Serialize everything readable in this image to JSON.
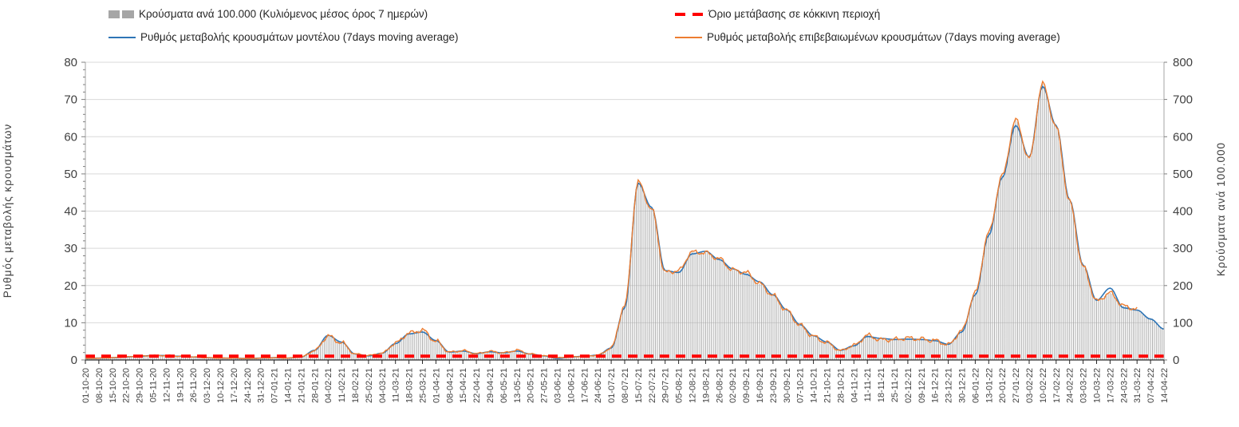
{
  "legend": {
    "items": [
      {
        "name": "cases-per-100k",
        "label": "Κρούσματα ανά 100.000 (Κυλιόμενος μέσος όρος 7 ημερών)",
        "marker": "gray-bar",
        "color": "#a6a6a6"
      },
      {
        "name": "red-threshold",
        "label": "Όριο μετάβασης σε κόκκινη περιοχή",
        "marker": "red-dashes",
        "color": "#ff0000"
      },
      {
        "name": "model-rate",
        "label": "Ρυθμός μεταβολής κρουσμάτων μοντέλου (7days moving average)",
        "marker": "blue-line",
        "color": "#2e75b6"
      },
      {
        "name": "confirmed-rate",
        "label": "Ρυθμός μεταβολής επιβεβαιωμένων κρουσμάτων (7days moving average)",
        "marker": "orange-line",
        "color": "#ed7d31"
      }
    ]
  },
  "chart_data": {
    "type": "composite",
    "grid": "horizontal",
    "legend_position": "top",
    "left_axis": {
      "label": "Ρυθμός μεταβολής κρουσμάτων",
      "min": 0,
      "max": 80,
      "step": 10,
      "ticks": [
        0,
        10,
        20,
        30,
        40,
        50,
        60,
        70,
        80
      ]
    },
    "right_axis": {
      "label": "Κρούσματα ανά 100.000",
      "min": 0,
      "max": 800,
      "step": 100,
      "ticks": [
        0,
        100,
        200,
        300,
        400,
        500,
        600,
        700,
        800
      ]
    },
    "x_weekly_labels": [
      "01-10-20",
      "08-10-20",
      "15-10-20",
      "22-10-20",
      "29-10-20",
      "05-11-20",
      "12-11-20",
      "19-11-20",
      "26-11-20",
      "03-12-20",
      "10-12-20",
      "17-12-20",
      "24-12-20",
      "31-12-20",
      "07-01-21",
      "14-01-21",
      "21-01-21",
      "28-01-21",
      "04-02-21",
      "11-02-21",
      "18-02-21",
      "25-02-21",
      "04-03-21",
      "11-03-21",
      "18-03-21",
      "25-03-21",
      "01-04-21",
      "08-04-21",
      "15-04-21",
      "22-04-21",
      "29-04-21",
      "06-05-21",
      "13-05-21",
      "20-05-21",
      "27-05-21",
      "03-06-21",
      "10-06-21",
      "17-06-21",
      "24-06-21",
      "01-07-21",
      "08-07-21",
      "15-07-21",
      "22-07-21",
      "29-07-21",
      "05-08-21",
      "12-08-21",
      "19-08-21",
      "26-08-21",
      "02-09-21",
      "09-09-21",
      "16-09-21",
      "23-09-21",
      "30-09-21",
      "07-10-21",
      "14-10-21",
      "21-10-21",
      "28-10-21",
      "04-11-21",
      "11-11-21",
      "18-11-21",
      "25-11-21",
      "02-12-21",
      "09-12-21",
      "16-12-21",
      "23-12-21",
      "30-12-21",
      "06-01-22",
      "13-01-22",
      "20-01-22",
      "27-01-22",
      "03-02-22",
      "10-02-22",
      "17-02-22",
      "24-02-22",
      "03-03-22",
      "10-03-22",
      "17-03-22",
      "24-03-22",
      "31-03-22",
      "07-04-22",
      "14-04-22"
    ],
    "series": [
      {
        "name": "Κρούσματα ανά 100.000 (Κυλιόμενος μέσος όρος 7 ημερών)",
        "type": "bar",
        "axis": "right",
        "color": "#a6a6a6",
        "values": [
          4,
          5,
          6,
          8,
          10,
          12,
          12,
          10,
          8,
          6,
          5,
          5,
          4,
          5,
          6,
          5,
          8,
          25,
          64,
          46,
          16,
          12,
          18,
          45,
          72,
          80,
          50,
          21,
          25,
          17,
          23,
          19,
          26,
          16,
          11,
          6,
          8,
          10,
          13,
          32,
          145,
          478,
          405,
          235,
          240,
          290,
          288,
          272,
          242,
          235,
          205,
          173,
          133,
          93,
          63,
          46,
          25,
          39,
          66,
          54,
          55,
          59,
          56,
          52,
          41,
          78,
          180,
          342,
          495,
          645,
          540,
          742,
          625,
          425,
          250,
          158,
          180,
          145,
          136,
          112,
          85
        ]
      },
      {
        "name": "Ρυθμός μεταβολής κρουσμάτων μοντέλου (7days moving average)",
        "type": "line",
        "axis": "left",
        "color": "#2e75b6",
        "values": [
          0.4,
          0.5,
          0.6,
          0.8,
          1.0,
          1.2,
          1.2,
          1.0,
          0.8,
          0.6,
          0.5,
          0.5,
          0.4,
          0.5,
          0.6,
          0.5,
          0.8,
          2.6,
          6.6,
          4.8,
          1.6,
          1.1,
          1.8,
          4.4,
          7.0,
          7.5,
          5.2,
          2.1,
          2.4,
          1.7,
          2.2,
          1.9,
          2.4,
          1.6,
          1.1,
          0.4,
          0.8,
          1.0,
          1.3,
          3.2,
          14.0,
          47.5,
          41.0,
          24.0,
          23.5,
          28.5,
          29.2,
          27.0,
          24.5,
          23.0,
          21.0,
          17.5,
          13.5,
          9.5,
          6.5,
          4.8,
          2.6,
          3.8,
          6.3,
          5.8,
          5.5,
          5.6,
          5.5,
          5.2,
          4.2,
          7.5,
          17.5,
          33.5,
          49.0,
          63.0,
          54.5,
          73.5,
          63.0,
          43.0,
          25.5,
          16.0,
          19.3,
          14.0,
          13.4,
          11.0,
          8.3
        ]
      },
      {
        "name": "Ρυθμός μεταβολής επιβεβαιωμένων κρουσμάτων (7days moving average)",
        "type": "line",
        "axis": "left",
        "color": "#ed7d31",
        "values": [
          0.4,
          0.5,
          0.6,
          0.8,
          1.0,
          1.2,
          1.2,
          1.0,
          0.8,
          0.6,
          0.5,
          0.5,
          0.4,
          0.5,
          0.6,
          0.5,
          0.8,
          2.5,
          6.4,
          4.6,
          1.6,
          1.2,
          1.8,
          4.5,
          7.2,
          8.0,
          5.0,
          2.1,
          2.5,
          1.7,
          2.3,
          1.9,
          2.6,
          1.6,
          1.1,
          0.6,
          0.8,
          1.0,
          1.3,
          3.2,
          14.5,
          47.8,
          40.5,
          23.5,
          24.0,
          29.0,
          28.8,
          27.2,
          24.2,
          23.5,
          20.5,
          17.3,
          13.3,
          9.3,
          6.3,
          4.6,
          2.5,
          3.9,
          6.6,
          5.4,
          5.5,
          5.9,
          5.6,
          5.2,
          4.1,
          7.8,
          18.0,
          34.2,
          49.5,
          64.5,
          54.0,
          74.2,
          62.5,
          42.5,
          25.0,
          15.8,
          18.0,
          14.5,
          13.6,
          null,
          null
        ]
      },
      {
        "name": "Όριο μετάβασης σε κόκκινη περιοχή",
        "type": "threshold-line",
        "axis": "left",
        "color": "#ff0000",
        "value": 1.0
      }
    ]
  },
  "colors": {
    "grid": "#d9d9d9",
    "axis_text": "#404040",
    "bottom_axis": "#262626",
    "side_axis": "#a6a6a6",
    "background": "#ffffff"
  }
}
